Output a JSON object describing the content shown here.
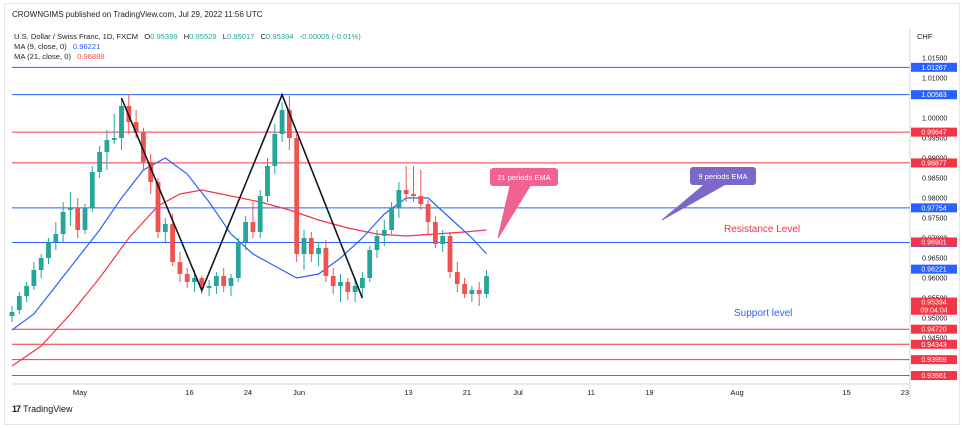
{
  "publisher": "CROWNGIMS published on TradingView.com, Jul 29, 2022 11:56 UTC",
  "legend": {
    "symbol": "U.S. Dollar / Swiss Franc, 1D, FXCM",
    "ohlc": {
      "O": "0.95399",
      "H": "0.95529",
      "L": "0.95017",
      "C": "0.95394",
      "change": "-0.00005 (-0.01%)"
    },
    "ma9_label": "MA (9, close, 0)",
    "ma9_value": "0.96221",
    "ma21_label": "MA (21, close, 0)",
    "ma21_value": "0.96888"
  },
  "currency": "CHF",
  "footer_logo": "TradingView",
  "colors": {
    "up": "#26a69a",
    "down": "#ef5350",
    "ma9": "#2962ff",
    "ma21": "#f23645",
    "blue_line": "#2962ff",
    "red_line": "#f23645",
    "callout": "#f06292",
    "callout_blue": "#7b68c8"
  },
  "chart_data": {
    "type": "candlestick",
    "y_range": [
      0.9335,
      1.0185
    ],
    "x_range": [
      0,
      146
    ],
    "x_ticks": [
      {
        "x": 0,
        "label": "May"
      },
      {
        "x": 15,
        "label": "16"
      },
      {
        "x": 23,
        "label": "24"
      },
      {
        "x": 30,
        "label": "Jun"
      },
      {
        "x": 45,
        "label": "13"
      },
      {
        "x": 53,
        "label": "21"
      },
      {
        "x": 60,
        "label": "Jul"
      },
      {
        "x": 70,
        "label": "11"
      },
      {
        "x": 78,
        "label": "19"
      },
      {
        "x": 90,
        "label": "Aug"
      },
      {
        "x": 105,
        "label": "15"
      },
      {
        "x": 113,
        "label": "23"
      }
    ],
    "y_ticks": [
      "1.01500",
      "1.01000",
      "1.00000",
      "0.99500",
      "0.99000",
      "0.98500",
      "0.98000",
      "0.97500",
      "0.97000",
      "0.96500",
      "0.96000",
      "0.95500",
      "0.95000",
      "0.94500"
    ],
    "levels": [
      {
        "value": 1.01267,
        "label": "1.01267",
        "color": "#2962ff"
      },
      {
        "value": 1.00583,
        "label": "1.00583",
        "color": "#2962ff"
      },
      {
        "value": 0.99647,
        "label": "0.99647",
        "color": "#f23645"
      },
      {
        "value": 0.98877,
        "label": "0.98877",
        "color": "#f23645"
      },
      {
        "value": 0.97754,
        "label": "0.97754",
        "color": "#2962ff"
      },
      {
        "value": 0.96888,
        "label": "0.96888",
        "color": "#2962ff"
      },
      {
        "value": 0.9472,
        "label": "0.94720",
        "color": "#f23645"
      },
      {
        "value": 0.94343,
        "label": "0.94343",
        "color": "#f23645"
      },
      {
        "value": 0.93959,
        "label": "0.93959",
        "color": "#f23645"
      },
      {
        "value": 0.93561,
        "label": "0.93561",
        "color": "#f23645"
      }
    ],
    "price_tags": [
      {
        "value": 0.96901,
        "label": "0.96901",
        "color": "#f23645"
      },
      {
        "value": 0.96221,
        "label": "0.96221",
        "color": "#2962ff"
      },
      {
        "value": 0.95397,
        "label": "0.95397",
        "color": "#f23645"
      },
      {
        "value": 0.95394,
        "label": "0.95394",
        "color": "#f23645",
        "sub": "09:04:04"
      }
    ],
    "candles": [
      {
        "x": 0,
        "o": 0.9505,
        "h": 0.953,
        "l": 0.949,
        "c": 0.9515
      },
      {
        "x": 1,
        "o": 0.952,
        "h": 0.9565,
        "l": 0.951,
        "c": 0.9555
      },
      {
        "x": 2,
        "o": 0.9555,
        "h": 0.959,
        "l": 0.954,
        "c": 0.958
      },
      {
        "x": 3,
        "o": 0.958,
        "h": 0.964,
        "l": 0.957,
        "c": 0.962
      },
      {
        "x": 4,
        "o": 0.962,
        "h": 0.966,
        "l": 0.96,
        "c": 0.965
      },
      {
        "x": 5,
        "o": 0.965,
        "h": 0.97,
        "l": 0.9635,
        "c": 0.969
      },
      {
        "x": 6,
        "o": 0.969,
        "h": 0.974,
        "l": 0.967,
        "c": 0.971
      },
      {
        "x": 7,
        "o": 0.971,
        "h": 0.979,
        "l": 0.969,
        "c": 0.9765
      },
      {
        "x": 8,
        "o": 0.977,
        "h": 0.9815,
        "l": 0.973,
        "c": 0.9775
      },
      {
        "x": 9,
        "o": 0.9775,
        "h": 0.98,
        "l": 0.97,
        "c": 0.972
      },
      {
        "x": 10,
        "o": 0.972,
        "h": 0.9785,
        "l": 0.971,
        "c": 0.9775
      },
      {
        "x": 11,
        "o": 0.9775,
        "h": 0.988,
        "l": 0.9765,
        "c": 0.9865
      },
      {
        "x": 12,
        "o": 0.9865,
        "h": 0.993,
        "l": 0.985,
        "c": 0.9915
      },
      {
        "x": 13,
        "o": 0.9915,
        "h": 0.997,
        "l": 0.987,
        "c": 0.9945
      },
      {
        "x": 14,
        "o": 0.9945,
        "h": 1.001,
        "l": 0.9935,
        "c": 0.995
      },
      {
        "x": 15,
        "o": 0.995,
        "h": 1.005,
        "l": 0.992,
        "c": 1.003
      },
      {
        "x": 16,
        "o": 1.003,
        "h": 1.006,
        "l": 0.996,
        "c": 0.999
      },
      {
        "x": 17,
        "o": 0.999,
        "h": 1.002,
        "l": 0.995,
        "c": 0.9965
      },
      {
        "x": 18,
        "o": 0.9965,
        "h": 0.9975,
        "l": 0.987,
        "c": 0.989
      },
      {
        "x": 19,
        "o": 0.989,
        "h": 0.991,
        "l": 0.981,
        "c": 0.984
      },
      {
        "x": 20,
        "o": 0.984,
        "h": 0.985,
        "l": 0.97,
        "c": 0.9715
      },
      {
        "x": 21,
        "o": 0.9715,
        "h": 0.975,
        "l": 0.969,
        "c": 0.9735
      },
      {
        "x": 22,
        "o": 0.9735,
        "h": 0.976,
        "l": 0.963,
        "c": 0.964
      },
      {
        "x": 23,
        "o": 0.964,
        "h": 0.9665,
        "l": 0.959,
        "c": 0.961
      },
      {
        "x": 24,
        "o": 0.961,
        "h": 0.9625,
        "l": 0.9575,
        "c": 0.959
      },
      {
        "x": 25,
        "o": 0.959,
        "h": 0.962,
        "l": 0.9565,
        "c": 0.96
      },
      {
        "x": 26,
        "o": 0.96,
        "h": 0.9605,
        "l": 0.956,
        "c": 0.9575
      },
      {
        "x": 27,
        "o": 0.9575,
        "h": 0.9595,
        "l": 0.9555,
        "c": 0.958
      },
      {
        "x": 28,
        "o": 0.958,
        "h": 0.9615,
        "l": 0.956,
        "c": 0.9605
      },
      {
        "x": 29,
        "o": 0.9605,
        "h": 0.9625,
        "l": 0.9565,
        "c": 0.958
      },
      {
        "x": 30,
        "o": 0.958,
        "h": 0.961,
        "l": 0.9555,
        "c": 0.96
      },
      {
        "x": 31,
        "o": 0.96,
        "h": 0.97,
        "l": 0.959,
        "c": 0.969
      },
      {
        "x": 32,
        "o": 0.969,
        "h": 0.9755,
        "l": 0.967,
        "c": 0.974
      },
      {
        "x": 33,
        "o": 0.974,
        "h": 0.979,
        "l": 0.97,
        "c": 0.9715
      },
      {
        "x": 34,
        "o": 0.9715,
        "h": 0.982,
        "l": 0.97,
        "c": 0.9805
      },
      {
        "x": 35,
        "o": 0.9805,
        "h": 0.99,
        "l": 0.979,
        "c": 0.988
      },
      {
        "x": 36,
        "o": 0.988,
        "h": 0.9985,
        "l": 0.986,
        "c": 0.996
      },
      {
        "x": 37,
        "o": 0.996,
        "h": 1.004,
        "l": 0.994,
        "c": 1.002
      },
      {
        "x": 38,
        "o": 1.002,
        "h": 1.0055,
        "l": 0.992,
        "c": 0.995
      },
      {
        "x": 39,
        "o": 0.995,
        "h": 0.996,
        "l": 0.964,
        "c": 0.966
      },
      {
        "x": 40,
        "o": 0.966,
        "h": 0.972,
        "l": 0.962,
        "c": 0.97
      },
      {
        "x": 41,
        "o": 0.97,
        "h": 0.9715,
        "l": 0.964,
        "c": 0.966
      },
      {
        "x": 42,
        "o": 0.966,
        "h": 0.969,
        "l": 0.963,
        "c": 0.9675
      },
      {
        "x": 43,
        "o": 0.9675,
        "h": 0.9695,
        "l": 0.959,
        "c": 0.9605
      },
      {
        "x": 44,
        "o": 0.9605,
        "h": 0.9625,
        "l": 0.956,
        "c": 0.958
      },
      {
        "x": 45,
        "o": 0.958,
        "h": 0.961,
        "l": 0.954,
        "c": 0.959
      },
      {
        "x": 46,
        "o": 0.959,
        "h": 0.96,
        "l": 0.9545,
        "c": 0.9565
      },
      {
        "x": 47,
        "o": 0.9565,
        "h": 0.96,
        "l": 0.954,
        "c": 0.958
      },
      {
        "x": 48,
        "o": 0.9575,
        "h": 0.9615,
        "l": 0.9555,
        "c": 0.96
      },
      {
        "x": 49,
        "o": 0.96,
        "h": 0.968,
        "l": 0.959,
        "c": 0.967
      },
      {
        "x": 50,
        "o": 0.967,
        "h": 0.972,
        "l": 0.965,
        "c": 0.9705
      },
      {
        "x": 51,
        "o": 0.9705,
        "h": 0.9745,
        "l": 0.968,
        "c": 0.972
      },
      {
        "x": 52,
        "o": 0.972,
        "h": 0.979,
        "l": 0.971,
        "c": 0.9775
      },
      {
        "x": 53,
        "o": 0.9775,
        "h": 0.984,
        "l": 0.975,
        "c": 0.982
      },
      {
        "x": 54,
        "o": 0.982,
        "h": 0.988,
        "l": 0.979,
        "c": 0.981
      },
      {
        "x": 55,
        "o": 0.981,
        "h": 0.988,
        "l": 0.979,
        "c": 0.9805
      },
      {
        "x": 56,
        "o": 0.9805,
        "h": 0.987,
        "l": 0.977,
        "c": 0.9785
      },
      {
        "x": 57,
        "o": 0.9785,
        "h": 0.9795,
        "l": 0.971,
        "c": 0.974
      },
      {
        "x": 58,
        "o": 0.974,
        "h": 0.9755,
        "l": 0.9675,
        "c": 0.9685
      },
      {
        "x": 59,
        "o": 0.9685,
        "h": 0.972,
        "l": 0.9665,
        "c": 0.9705
      },
      {
        "x": 60,
        "o": 0.9705,
        "h": 0.9715,
        "l": 0.96,
        "c": 0.9615
      },
      {
        "x": 61,
        "o": 0.9615,
        "h": 0.964,
        "l": 0.9565,
        "c": 0.9585
      },
      {
        "x": 62,
        "o": 0.9585,
        "h": 0.96,
        "l": 0.955,
        "c": 0.956
      },
      {
        "x": 63,
        "o": 0.956,
        "h": 0.958,
        "l": 0.954,
        "c": 0.957
      },
      {
        "x": 64,
        "o": 0.957,
        "h": 0.959,
        "l": 0.953,
        "c": 0.956
      },
      {
        "x": 65,
        "o": 0.956,
        "h": 0.962,
        "l": 0.955,
        "c": 0.9605
      }
    ],
    "ma9": [
      [
        0,
        0.947
      ],
      [
        3,
        0.951
      ],
      [
        6,
        0.958
      ],
      [
        9,
        0.965
      ],
      [
        12,
        0.972
      ],
      [
        15,
        0.98
      ],
      [
        18,
        0.987
      ],
      [
        21,
        0.99
      ],
      [
        24,
        0.986
      ],
      [
        27,
        0.979
      ],
      [
        30,
        0.971
      ],
      [
        33,
        0.966
      ],
      [
        36,
        0.963
      ],
      [
        39,
        0.96
      ],
      [
        42,
        0.961
      ],
      [
        45,
        0.965
      ],
      [
        48,
        0.97
      ],
      [
        51,
        0.976
      ],
      [
        54,
        0.98
      ],
      [
        57,
        0.98
      ],
      [
        60,
        0.975
      ],
      [
        63,
        0.97
      ],
      [
        65,
        0.966
      ]
    ],
    "ma21": [
      [
        0,
        0.938
      ],
      [
        4,
        0.943
      ],
      [
        8,
        0.951
      ],
      [
        12,
        0.96
      ],
      [
        16,
        0.97
      ],
      [
        20,
        0.978
      ],
      [
        23,
        0.981
      ],
      [
        26,
        0.982
      ],
      [
        30,
        0.9805
      ],
      [
        34,
        0.979
      ],
      [
        38,
        0.977
      ],
      [
        42,
        0.9745
      ],
      [
        46,
        0.9725
      ],
      [
        50,
        0.971
      ],
      [
        54,
        0.9705
      ],
      [
        58,
        0.971
      ],
      [
        62,
        0.9715
      ],
      [
        65,
        0.972
      ]
    ],
    "pattern": [
      [
        1.005,
        15
      ],
      [
        0.9569,
        26
      ],
      [
        1.0058,
        37
      ],
      [
        0.95495,
        48
      ]
    ],
    "annotations": [
      {
        "text": "21 periods EMA",
        "kind": "callout",
        "color": "#f06292"
      },
      {
        "text": "9 periods EMA",
        "kind": "callout",
        "color": "#7b68c8"
      },
      {
        "text": "Resistance Level",
        "kind": "label",
        "color": "#f23645"
      },
      {
        "text": "Support level",
        "kind": "label",
        "color": "#2962ff"
      }
    ]
  }
}
